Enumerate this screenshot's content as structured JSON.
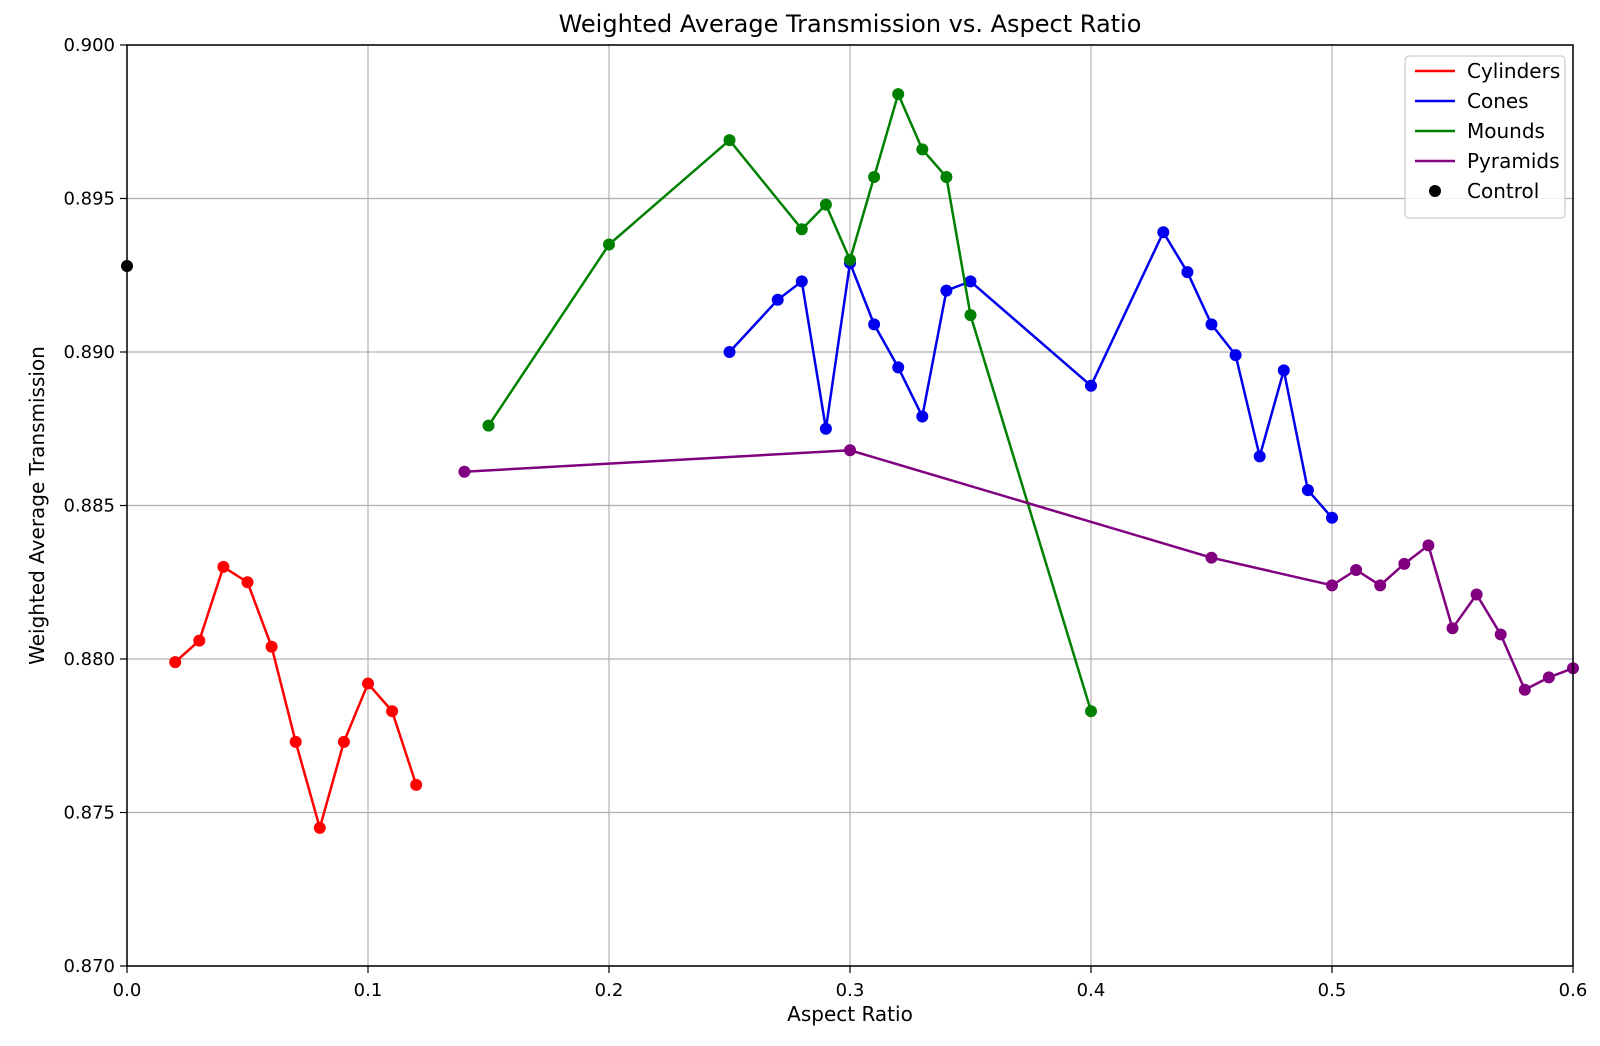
{
  "chart_data": {
    "type": "line",
    "title": "Weighted Average Transmission vs. Aspect Ratio",
    "xlabel": "Aspect Ratio",
    "ylabel": "Weighted Average Transmission",
    "xlim": [
      0.0,
      0.6
    ],
    "ylim": [
      0.87,
      0.9
    ],
    "xticks": [
      "0.0",
      "0.1",
      "0.2",
      "0.3",
      "0.4",
      "0.5",
      "0.6"
    ],
    "yticks": [
      "0.870",
      "0.875",
      "0.880",
      "0.885",
      "0.890",
      "0.895",
      "0.900"
    ],
    "grid": true,
    "legend_position": "top-right",
    "series": [
      {
        "name": "Cylinders",
        "color": "#ff0000",
        "kind": "line",
        "x": [
          0.02,
          0.03,
          0.04,
          0.05,
          0.06,
          0.07,
          0.08,
          0.09,
          0.1,
          0.11,
          0.12
        ],
        "y": [
          0.8799,
          0.8806,
          0.883,
          0.8825,
          0.8804,
          0.8773,
          0.8745,
          0.8773,
          0.8792,
          0.8783,
          0.8759
        ]
      },
      {
        "name": "Cones",
        "color": "#0000ee",
        "kind": "line",
        "x": [
          0.25,
          0.27,
          0.28,
          0.29,
          0.3,
          0.31,
          0.32,
          0.33,
          0.34,
          0.35,
          0.4,
          0.43,
          0.44,
          0.45,
          0.46,
          0.47,
          0.48,
          0.49,
          0.5
        ],
        "y": [
          0.89,
          0.8917,
          0.8923,
          0.8875,
          0.8929,
          0.8909,
          0.8895,
          0.8879,
          0.892,
          0.8923,
          0.8889,
          0.8939,
          0.8926,
          0.8909,
          0.8899,
          0.8866,
          0.8894,
          0.8855,
          0.8846
        ]
      },
      {
        "name": "Mounds",
        "color": "#008000",
        "kind": "line",
        "x": [
          0.15,
          0.2,
          0.25,
          0.28,
          0.29,
          0.3,
          0.31,
          0.32,
          0.33,
          0.34,
          0.35,
          0.4
        ],
        "y": [
          0.8876,
          0.8935,
          0.8969,
          0.894,
          0.8948,
          0.893,
          0.8957,
          0.8984,
          0.8966,
          0.8957,
          0.8912,
          0.8783
        ]
      },
      {
        "name": "Pyramids",
        "color": "#800080",
        "kind": "line",
        "x": [
          0.14,
          0.3,
          0.45,
          0.5,
          0.51,
          0.52,
          0.53,
          0.54,
          0.55,
          0.56,
          0.57,
          0.58,
          0.59,
          0.6
        ],
        "y": [
          0.8861,
          0.8868,
          0.8833,
          0.8824,
          0.8829,
          0.8824,
          0.8831,
          0.8837,
          0.881,
          0.8821,
          0.8808,
          0.879,
          0.8794,
          0.8797
        ]
      },
      {
        "name": "Control",
        "color": "#000000",
        "kind": "scatter",
        "x": [
          0.0
        ],
        "y": [
          0.8928
        ]
      }
    ]
  }
}
